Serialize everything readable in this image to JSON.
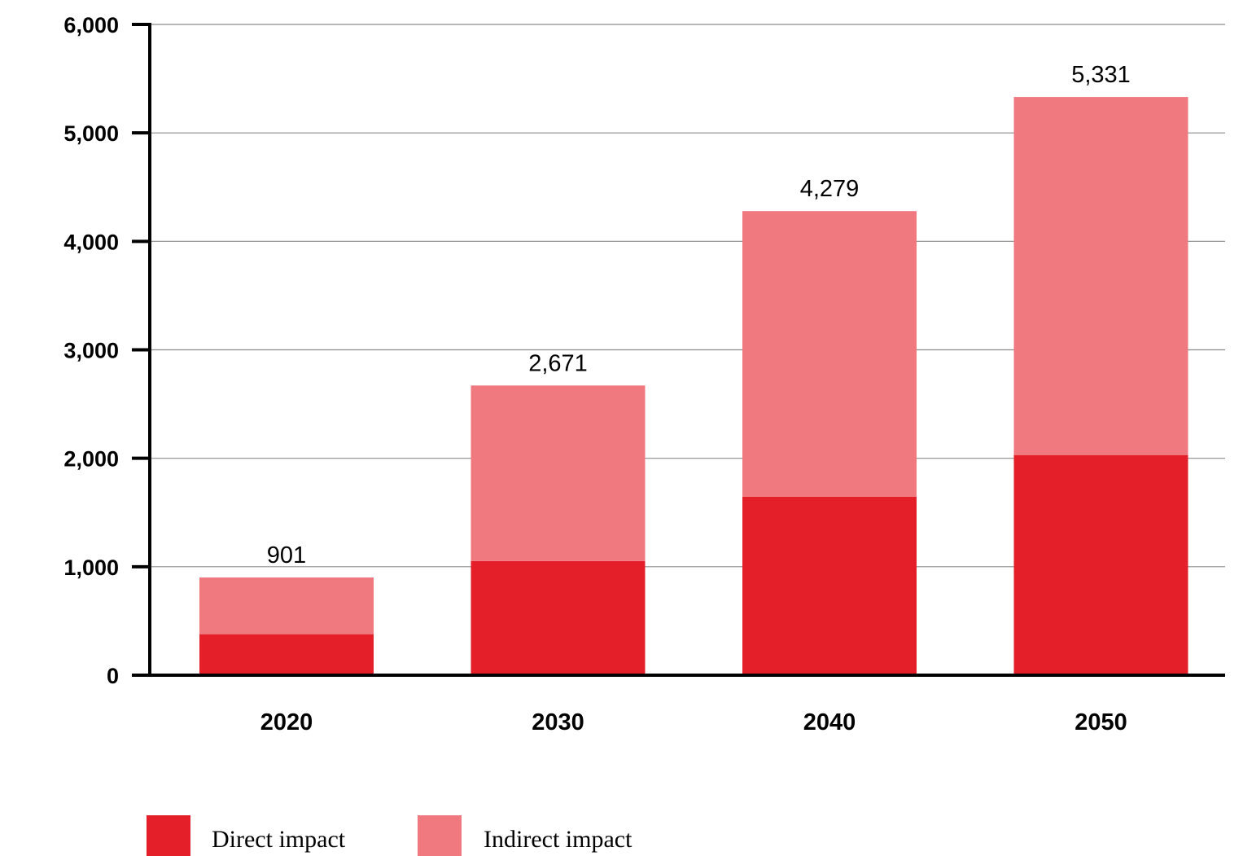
{
  "chart_data": {
    "type": "bar",
    "stacked": true,
    "categories": [
      "2020",
      "2030",
      "2040",
      "2050"
    ],
    "series": [
      {
        "name": "Direct impact",
        "color": "#e41f2a",
        "values": [
          378,
          1052,
          1645,
          2030
        ]
      },
      {
        "name": "Indirect impact",
        "color": "#f07980",
        "values": [
          523,
          1619,
          2634,
          3301
        ]
      }
    ],
    "totals": [
      901,
      2671,
      4279,
      5331
    ],
    "total_labels": [
      "901",
      "2,671",
      "4,279",
      "5,331"
    ],
    "yticks": [
      0,
      1000,
      2000,
      3000,
      4000,
      5000,
      6000
    ],
    "ytick_labels": [
      "0",
      "1,000",
      "2,000",
      "3,000",
      "4,000",
      "5,000",
      "6,000"
    ],
    "ylim": [
      0,
      6000
    ],
    "grid": true,
    "legend_position": "bottom-left"
  }
}
